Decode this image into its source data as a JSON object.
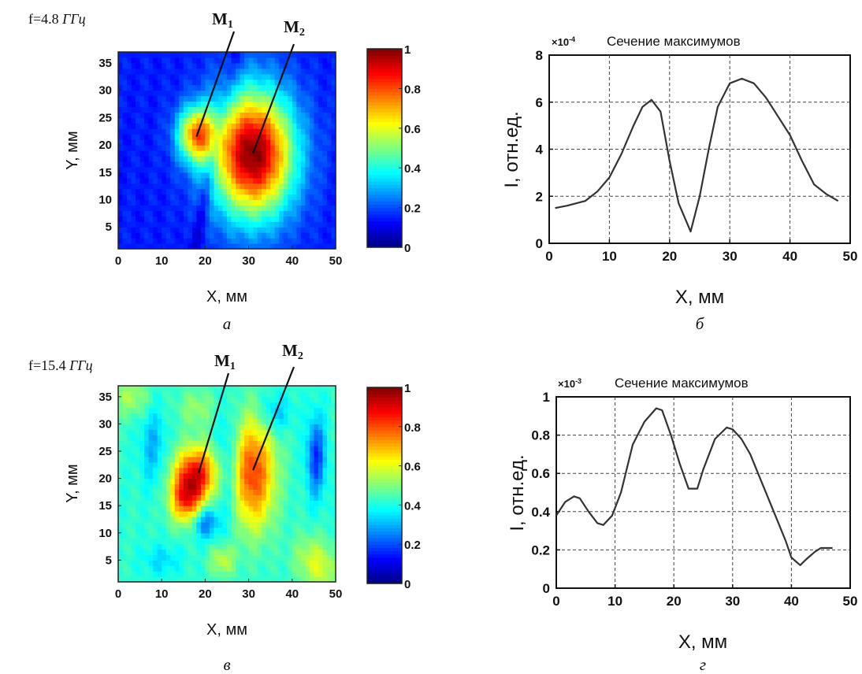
{
  "panels": [
    {
      "id": "a",
      "freq_prefix": "f=4.8 ",
      "freq_unit": "ГГц",
      "sublabel": "а",
      "xlabel": "X, мм",
      "ylabel": "Y, мм",
      "marker_labels": [
        {
          "main": "M",
          "sub": "1"
        },
        {
          "main": "M",
          "sub": "2"
        }
      ]
    },
    {
      "id": "b",
      "sublabel": "б",
      "title": "Сечение максимумов",
      "multiplier": "×10",
      "multiplier_exp": "-4",
      "xlabel": "X, мм",
      "ylabel": "I, отн.ед."
    },
    {
      "id": "v",
      "freq_prefix": "f=15.4 ",
      "freq_unit": "ГГц",
      "sublabel": "в",
      "xlabel": "X, мм",
      "ylabel": "Y, мм",
      "marker_labels": [
        {
          "main": "M",
          "sub": "1"
        },
        {
          "main": "M",
          "sub": "2"
        }
      ]
    },
    {
      "id": "g",
      "sublabel": "г",
      "title": "Сечение максимумов",
      "multiplier": "×10",
      "multiplier_exp": "-3",
      "xlabel": "X, мм",
      "ylabel": "I, отн.ед."
    }
  ],
  "chart_data": [
    {
      "type": "heatmap",
      "panel": "a",
      "xlabel": "X, мм",
      "ylabel": "Y, мм",
      "xlim": [
        0,
        50
      ],
      "ylim": [
        1,
        37
      ],
      "xticks": [
        0,
        10,
        20,
        30,
        40,
        50
      ],
      "yticks": [
        5,
        10,
        15,
        20,
        25,
        30,
        35
      ],
      "colorbar": {
        "range": [
          0,
          1
        ],
        "ticks": [
          0,
          0.2,
          0.4,
          0.6,
          0.8,
          1
        ],
        "tick_labels": [
          "0",
          "0.2",
          "0.4",
          "0.6",
          "0.8",
          "1"
        ],
        "colormap": "jet"
      },
      "background": 0.15,
      "blobs": [
        {
          "x": 31,
          "y": 18.5,
          "sx": 6.5,
          "sy": 8,
          "amp": 0.85
        },
        {
          "x": 18,
          "y": 22,
          "sx": 3,
          "sy": 3.5,
          "amp": 0.55
        }
      ],
      "trough_line": {
        "x1": 18,
        "y1": 3,
        "x2": 27,
        "y2": 37,
        "depth": 0.08
      },
      "markers": [
        {
          "label": "M1",
          "x": 18,
          "y": 21.5
        },
        {
          "label": "M2",
          "x": 31,
          "y": 18.5
        }
      ]
    },
    {
      "type": "line",
      "panel": "b",
      "title": "Сечение максимумов",
      "xlabel": "X, мм",
      "ylabel": "I, отн.ед.",
      "scale_multiplier": "×10-4",
      "xlim": [
        0,
        50
      ],
      "ylim": [
        0,
        8
      ],
      "xticks": [
        0,
        10,
        20,
        30,
        40,
        50
      ],
      "yticks": [
        0,
        2,
        4,
        6,
        8
      ],
      "grid": true,
      "series": [
        {
          "x": [
            1,
            3,
            6,
            8,
            10,
            12,
            14,
            15.5,
            17,
            18.5,
            20,
            21.5,
            23.5,
            25,
            26.5,
            28,
            30,
            32,
            34,
            36,
            38,
            40,
            42,
            44,
            46,
            48
          ],
          "y": [
            1.5,
            1.6,
            1.8,
            2.2,
            2.8,
            3.8,
            5.0,
            5.8,
            6.1,
            5.6,
            3.5,
            1.7,
            0.5,
            2.0,
            4.0,
            5.8,
            6.8,
            7.0,
            6.8,
            6.2,
            5.4,
            4.6,
            3.5,
            2.5,
            2.1,
            1.8
          ]
        }
      ]
    },
    {
      "type": "heatmap",
      "panel": "v",
      "xlabel": "X, мм",
      "ylabel": "Y, мм",
      "xlim": [
        0,
        50
      ],
      "ylim": [
        1,
        37
      ],
      "xticks": [
        0,
        10,
        20,
        30,
        40,
        50
      ],
      "yticks": [
        5,
        10,
        15,
        20,
        25,
        30,
        35
      ],
      "colorbar": {
        "range": [
          0,
          1
        ],
        "ticks": [
          0,
          0.2,
          0.4,
          0.6,
          0.8,
          1
        ],
        "tick_labels": [
          "0",
          "0.2",
          "0.4",
          "0.6",
          "0.8",
          "1"
        ],
        "colormap": "jet"
      },
      "background": 0.42,
      "blobs": [
        {
          "x": 18,
          "y": 21,
          "sx": 3.5,
          "sy": 3.5,
          "amp": 0.45
        },
        {
          "x": 15.5,
          "y": 16,
          "sx": 2.5,
          "sy": 3,
          "amp": 0.35
        },
        {
          "x": 31,
          "y": 21,
          "sx": 3.5,
          "sy": 7,
          "amp": 0.4
        },
        {
          "x": 3,
          "y": 35,
          "sx": 3,
          "sy": 2.5,
          "amp": 0.12
        },
        {
          "x": 18,
          "y": 33,
          "sx": 3,
          "sy": 2.5,
          "amp": 0.1
        },
        {
          "x": 24,
          "y": 5,
          "sx": 2,
          "sy": 2,
          "amp": 0.15
        },
        {
          "x": 47,
          "y": 3,
          "sx": 3,
          "sy": 3,
          "amp": 0.12
        },
        {
          "x": 44,
          "y": 6,
          "sx": 3,
          "sy": 3,
          "amp": 0.1
        },
        {
          "x": 8,
          "y": 26,
          "sx": 2,
          "sy": 5,
          "amp": -0.12
        },
        {
          "x": 25,
          "y": 22,
          "sx": 2,
          "sy": 7,
          "amp": -0.14
        },
        {
          "x": 45.5,
          "y": 24,
          "sx": 1.5,
          "sy": 5,
          "amp": -0.25
        },
        {
          "x": 20,
          "y": 12,
          "sx": 2,
          "sy": 2,
          "amp": -0.2
        },
        {
          "x": 36,
          "y": 32,
          "sx": 2.5,
          "sy": 2.5,
          "amp": -0.12
        },
        {
          "x": 10,
          "y": 5,
          "sx": 3,
          "sy": 2,
          "amp": -0.08
        }
      ],
      "markers": [
        {
          "label": "M1",
          "x": 18.5,
          "y": 21
        },
        {
          "label": "M2",
          "x": 31,
          "y": 21.5
        }
      ]
    },
    {
      "type": "line",
      "panel": "g",
      "title": "Сечение максимумов",
      "xlabel": "X, мм",
      "ylabel": "I, отн.ед.",
      "scale_multiplier": "×10-3",
      "xlim": [
        0,
        50
      ],
      "ylim": [
        0,
        1
      ],
      "xticks": [
        0,
        10,
        20,
        30,
        40,
        50
      ],
      "yticks": [
        0,
        0.2,
        0.4,
        0.6,
        0.8,
        1
      ],
      "ytick_labels": [
        "0",
        "0.2",
        "0.4",
        "0.6",
        "0.8",
        "1"
      ],
      "grid": true,
      "series": [
        {
          "x": [
            0,
            1.5,
            3,
            4,
            5.5,
            7,
            8,
            9.5,
            11,
            13,
            15,
            17,
            18,
            19.5,
            21,
            22.5,
            24,
            25,
            27,
            29,
            30,
            31.5,
            33,
            35,
            37,
            39,
            40,
            41.5,
            42.5,
            44,
            45,
            47
          ],
          "y": [
            0.38,
            0.45,
            0.48,
            0.47,
            0.4,
            0.34,
            0.33,
            0.38,
            0.5,
            0.75,
            0.87,
            0.94,
            0.93,
            0.8,
            0.65,
            0.52,
            0.52,
            0.62,
            0.78,
            0.84,
            0.83,
            0.78,
            0.7,
            0.55,
            0.4,
            0.25,
            0.16,
            0.12,
            0.15,
            0.19,
            0.21,
            0.21
          ]
        }
      ]
    }
  ]
}
